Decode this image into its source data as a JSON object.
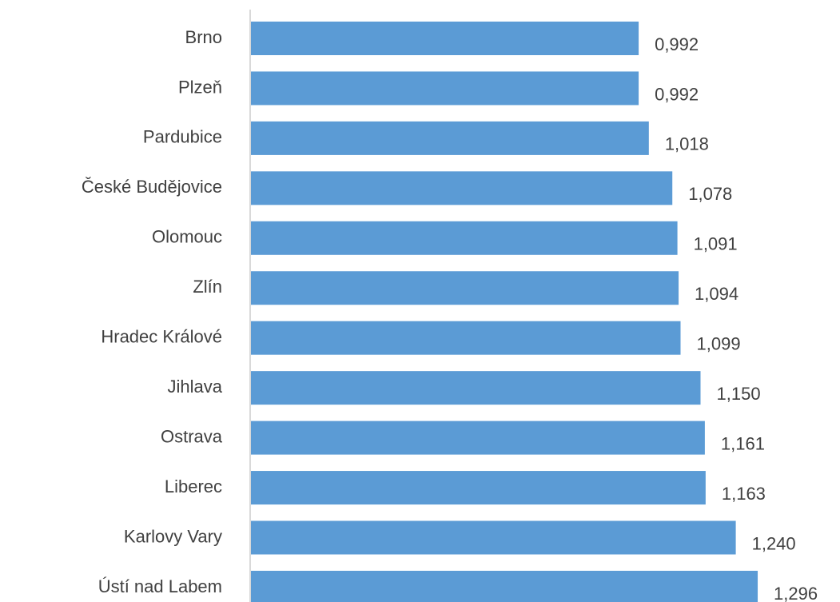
{
  "chart_data": {
    "type": "bar",
    "orientation": "horizontal",
    "categories": [
      "Brno",
      "Plzeň",
      "Pardubice",
      "České Budějovice",
      "Olomouc",
      "Zlín",
      "Hradec Králové",
      "Jihlava",
      "Ostrava",
      "Liberec",
      "Karlovy Vary",
      "Ústí nad Labem"
    ],
    "values": [
      0.992,
      0.992,
      1.018,
      1.078,
      1.091,
      1.094,
      1.099,
      1.15,
      1.161,
      1.163,
      1.24,
      1.296
    ],
    "value_labels": [
      "0,992",
      "0,992",
      "1,018",
      "1,078",
      "1,091",
      "1,094",
      "1,099",
      "1,150",
      "1,161",
      "1,163",
      "1,240",
      "1,296"
    ],
    "color": "#5b9bd5",
    "xlim": [
      0,
      1.4
    ]
  }
}
